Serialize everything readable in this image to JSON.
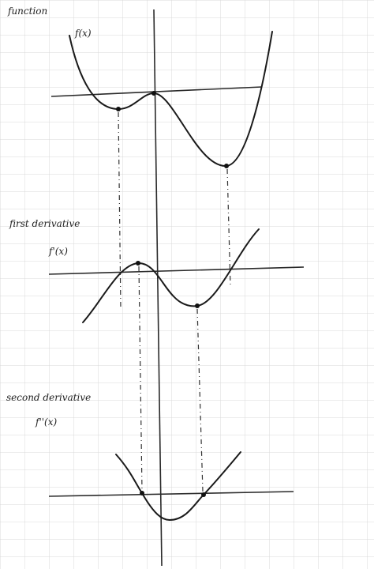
{
  "labels": {
    "function": "function",
    "f": "f(x)",
    "first": "first derivative",
    "f1": "f'(x)",
    "second": "second derivative",
    "f2": "f''(x)"
  }
}
